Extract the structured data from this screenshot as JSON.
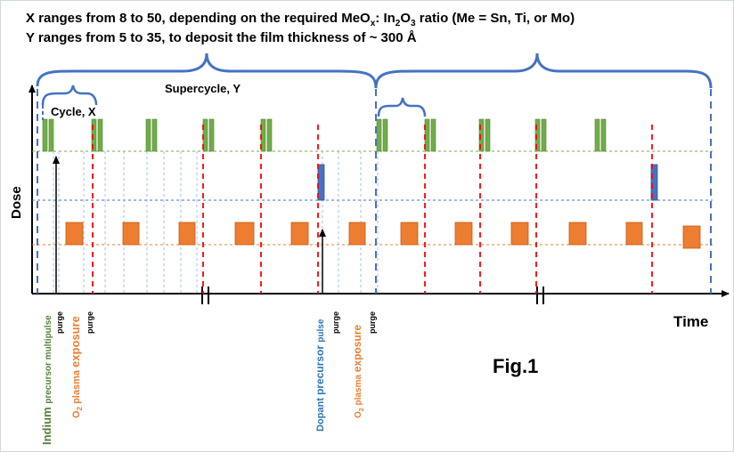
{
  "header": {
    "line1": {
      "a": "X ranges from 8 to 50, depending on the required MeO",
      "a_sub": "x",
      "b": ": In",
      "b_sub": "2",
      "c": "O",
      "c_sub": "3",
      "d": " ratio (Me = Sn, Ti, or Mo)"
    },
    "line2": "Y ranges from 5 to 35, to deposit the film thickness of ~ 300 Å"
  },
  "labels": {
    "supercycle": "Supercycle, Y",
    "cycle": "Cycle, X",
    "dose_axis": "Dose",
    "time_axis": "Time",
    "figure": "Fig.1"
  },
  "step_labels": {
    "indium": {
      "big": "Indium ",
      "small": "precursor multipulse"
    },
    "purge1": "purge",
    "o2_1": {
      "o": "O",
      "sub": "2",
      "rest": " plasma ",
      "big": "exposure"
    },
    "purge2": "purge",
    "dopant": {
      "big": "Dopant ",
      "mid": "precursor ",
      "small": "pulse"
    },
    "purge3": "purge",
    "o2_2": {
      "o": "O",
      "sub": "2",
      "rest": " plasma ",
      "big": "exposure"
    },
    "purge4": "purge"
  },
  "colors": {
    "green": "#70ad47",
    "green_dark": "#548235",
    "orange": "#ed7d31",
    "orange_dark": "#c55a11",
    "blue": "#4472c4",
    "blue_dark": "#2f5597",
    "red": "#ff0000",
    "black": "#000000"
  },
  "icons": {
    "axis_break": "double-slash-break-icon",
    "brace": "curly-brace-icon"
  }
}
